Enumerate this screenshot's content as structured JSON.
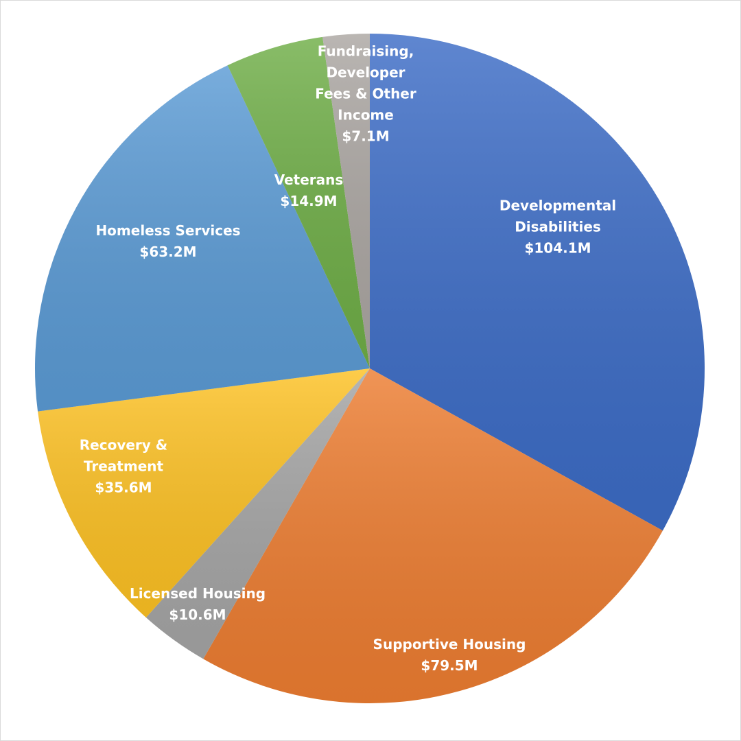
{
  "chart_data": {
    "type": "pie",
    "categories": [
      "Developmental Disabilities",
      "Supportive Housing",
      "Licensed Housing",
      "Recovery & Treatment",
      "Homeless Services",
      "Veterans",
      "Fundraising, Developer Fees & Other Income"
    ],
    "values": [
      104.1,
      79.5,
      10.6,
      35.6,
      63.2,
      14.9,
      7.1
    ],
    "value_labels": [
      "$104.1M",
      "$79.5M",
      "$10.6M",
      "$35.6M",
      "$63.2M",
      "$14.9M",
      "$7.1M"
    ],
    "colors": [
      "#3c6cc6",
      "#ed7d31",
      "#a5a5a5",
      "#fdc123",
      "#5b9bd5",
      "#6fae47",
      "#aba6a2"
    ]
  }
}
